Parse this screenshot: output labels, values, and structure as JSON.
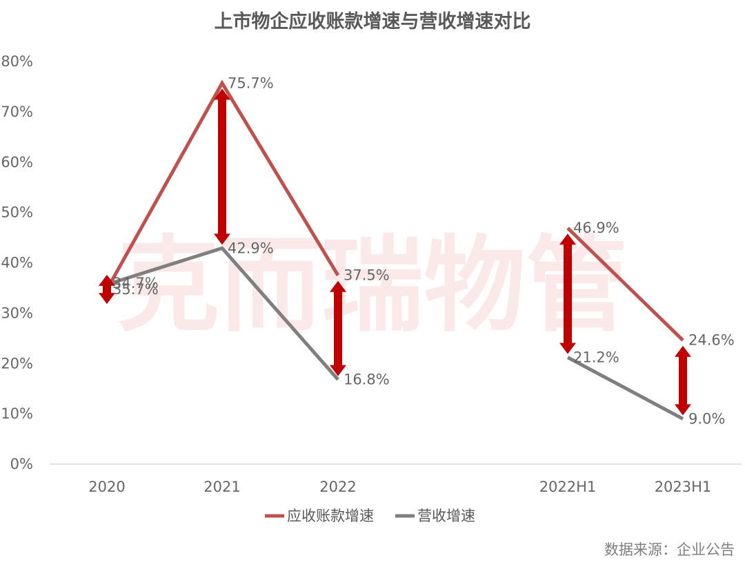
{
  "chart_data": {
    "type": "line",
    "title": "上市物企应收账款增速与营收增速对比",
    "categories": [
      "2020",
      "2021",
      "2022",
      "2022H1",
      "2023H1"
    ],
    "y_ticks": [
      "0%",
      "10%",
      "20%",
      "30%",
      "40%",
      "50%",
      "60%",
      "70%",
      "80%"
    ],
    "ylim": [
      0,
      80
    ],
    "series": [
      {
        "name": "应收账款增速",
        "color": "#c0504d",
        "values": [
          34.7,
          75.7,
          37.5,
          46.9,
          24.6
        ],
        "labels": [
          "34.7%",
          "75.7%",
          "37.5%",
          "46.9%",
          "24.6%"
        ]
      },
      {
        "name": "营收增速",
        "color": "#7f7f7f",
        "values": [
          35.7,
          42.9,
          16.8,
          21.2,
          9.0
        ],
        "labels": [
          "35.7%",
          "42.9%",
          "16.8%",
          "21.2%",
          "9.0%"
        ]
      }
    ],
    "segments": [
      [
        0,
        2
      ],
      [
        3,
        4
      ]
    ],
    "arrow_color": "#c00000",
    "grid": false,
    "legend": "bottom"
  },
  "watermark": "克而瑞物管",
  "source": "数据来源：企业公告"
}
